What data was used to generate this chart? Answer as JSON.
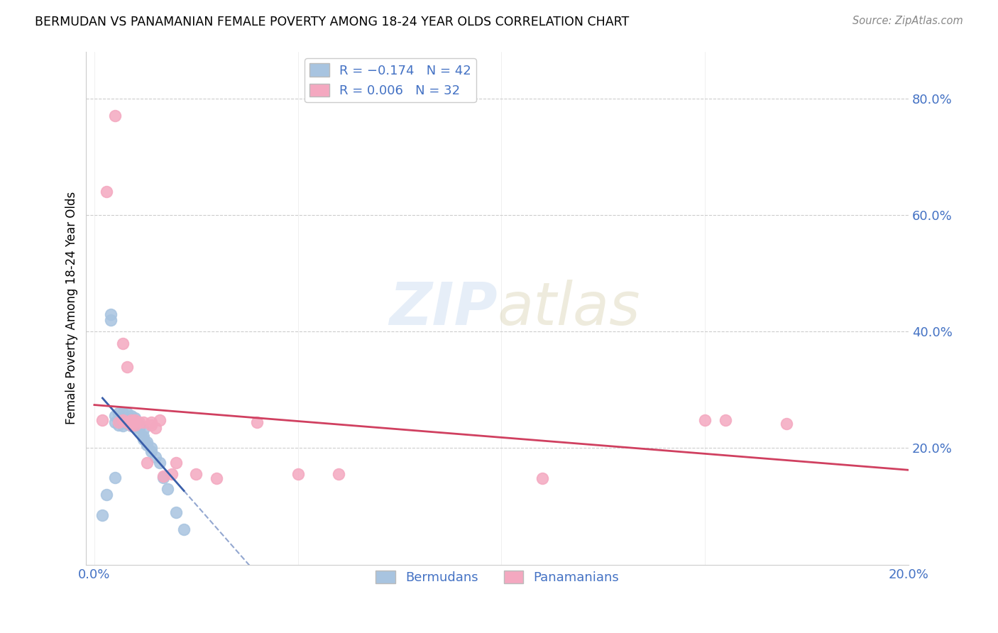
{
  "title": "BERMUDAN VS PANAMANIAN FEMALE POVERTY AMONG 18-24 YEAR OLDS CORRELATION CHART",
  "source": "Source: ZipAtlas.com",
  "ylabel": "Female Poverty Among 18-24 Year Olds",
  "label_bermuda": "Bermudans",
  "label_panama": "Panamanians",
  "r_bermuda": -0.174,
  "n_bermuda": 42,
  "r_panama": 0.006,
  "n_panama": 32,
  "color_bermuda": "#a8c4e0",
  "color_panama": "#f4a8c0",
  "color_bermuda_line": "#3a5faa",
  "color_panama_line": "#d04060",
  "color_axis": "#4472c4",
  "background": "#ffffff",
  "xlim": [
    0.0,
    0.2
  ],
  "ylim": [
    0.0,
    0.88
  ],
  "x_ticks": [
    0.0,
    0.05,
    0.1,
    0.15,
    0.2
  ],
  "x_tick_labels": [
    "0.0%",
    "",
    "",
    "",
    "20.0%"
  ],
  "y_ticks_right": [
    0.2,
    0.4,
    0.6,
    0.8
  ],
  "y_tick_labels_right": [
    "20.0%",
    "40.0%",
    "60.0%",
    "80.0%"
  ],
  "bermuda_x": [
    0.002,
    0.003,
    0.004,
    0.004,
    0.005,
    0.005,
    0.005,
    0.006,
    0.006,
    0.006,
    0.007,
    0.007,
    0.007,
    0.007,
    0.008,
    0.008,
    0.008,
    0.008,
    0.009,
    0.009,
    0.009,
    0.009,
    0.01,
    0.01,
    0.01,
    0.01,
    0.011,
    0.011,
    0.011,
    0.012,
    0.012,
    0.012,
    0.013,
    0.013,
    0.014,
    0.014,
    0.015,
    0.016,
    0.017,
    0.018,
    0.02,
    0.022
  ],
  "bermuda_y": [
    0.085,
    0.12,
    0.42,
    0.43,
    0.15,
    0.245,
    0.255,
    0.25,
    0.26,
    0.24,
    0.25,
    0.26,
    0.245,
    0.238,
    0.25,
    0.26,
    0.242,
    0.248,
    0.245,
    0.238,
    0.25,
    0.255,
    0.245,
    0.24,
    0.252,
    0.248,
    0.24,
    0.235,
    0.228,
    0.232,
    0.22,
    0.215,
    0.21,
    0.205,
    0.2,
    0.195,
    0.185,
    0.175,
    0.15,
    0.13,
    0.09,
    0.06
  ],
  "panama_x": [
    0.002,
    0.003,
    0.005,
    0.006,
    0.007,
    0.007,
    0.008,
    0.008,
    0.009,
    0.009,
    0.009,
    0.01,
    0.01,
    0.011,
    0.012,
    0.013,
    0.014,
    0.014,
    0.015,
    0.016,
    0.017,
    0.019,
    0.02,
    0.025,
    0.03,
    0.04,
    0.05,
    0.06,
    0.11,
    0.15,
    0.155,
    0.17
  ],
  "panama_y": [
    0.248,
    0.64,
    0.77,
    0.245,
    0.248,
    0.38,
    0.34,
    0.245,
    0.24,
    0.245,
    0.248,
    0.24,
    0.248,
    0.245,
    0.245,
    0.175,
    0.245,
    0.24,
    0.235,
    0.248,
    0.152,
    0.155,
    0.175,
    0.155,
    0.148,
    0.245,
    0.155,
    0.155,
    0.148,
    0.248,
    0.248,
    0.242
  ]
}
